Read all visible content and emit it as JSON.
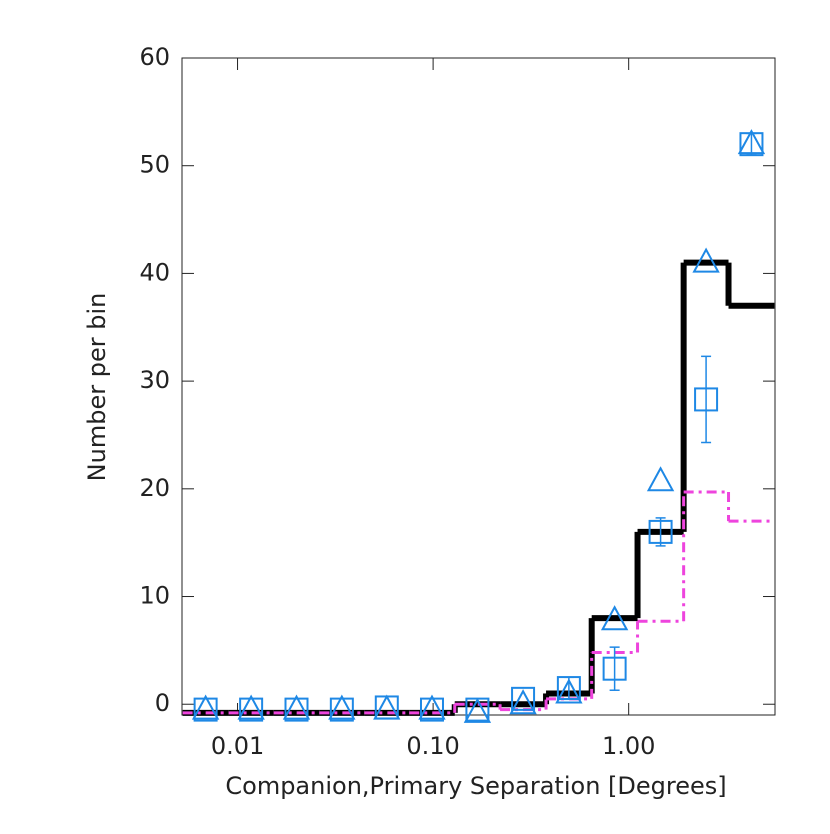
{
  "chart_data": {
    "type": "histogram",
    "xlabel": "Companion,Primary Separation [Degrees]",
    "ylabel": "Number per bin",
    "xscale": "log",
    "xlim": [
      0.0052,
      5.6
    ],
    "ylim": [
      -1,
      60
    ],
    "xticks": [
      {
        "value": 0.01,
        "label": "0.01"
      },
      {
        "value": 0.1,
        "label": "0.10"
      },
      {
        "value": 1,
        "label": "1.00"
      }
    ],
    "yticks": [
      0,
      10,
      20,
      30,
      40,
      50,
      60
    ],
    "bins": [
      0.00524,
      0.009,
      0.0153,
      0.0262,
      0.0445,
      0.0755,
      0.129,
      0.22,
      0.378,
      0.647,
      1.11,
      1.91,
      3.24,
      5.56
    ],
    "series": [
      {
        "style": "step",
        "color": "#000000",
        "width": 6,
        "values": [
          -0.8,
          -0.8,
          -0.8,
          -0.8,
          -0.8,
          -0.8,
          0,
          0,
          1,
          8,
          16,
          41,
          37
        ]
      },
      {
        "style": "step",
        "color": "#ee44dd",
        "width": 3,
        "dash": true,
        "values": [
          -0.8,
          -0.8,
          -0.8,
          -0.8,
          -0.8,
          -0.8,
          0,
          -0.5,
          0.5,
          4.8,
          7.7,
          19.7,
          17
        ]
      },
      {
        "style": "square",
        "color": "#1e88e5",
        "values": [
          -0.5,
          -0.5,
          -0.5,
          -0.5,
          -0.3,
          -0.5,
          -0.5,
          0.5,
          1.5,
          3.3,
          16,
          28.3,
          52
        ],
        "errors": [
          null,
          null,
          null,
          null,
          null,
          null,
          null,
          null,
          1,
          2,
          1.3,
          4,
          1
        ]
      },
      {
        "style": "triangle",
        "color": "#1e88e5",
        "values": [
          -0.5,
          -0.5,
          -0.5,
          -0.5,
          -0.5,
          -0.5,
          -0.8,
          0,
          1,
          7.8,
          20.7,
          41,
          52
        ]
      }
    ]
  }
}
